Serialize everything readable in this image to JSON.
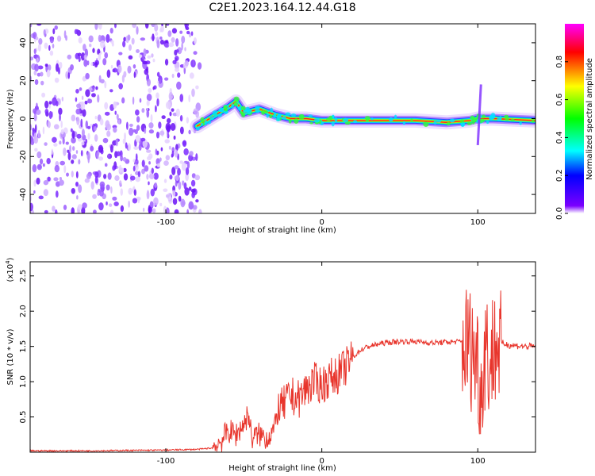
{
  "title": "C2E1.2023.164.12.44.G18",
  "chart_data": [
    {
      "type": "heatmap",
      "xlabel": "Height of straight line (km)",
      "ylabel": "Frequency (Hz)",
      "xlim": [
        -187,
        137
      ],
      "ylim": [
        -50,
        50
      ],
      "xticks": [
        -100,
        0,
        100
      ],
      "yticks": [
        40,
        20,
        0,
        -20,
        -40
      ],
      "colorbar": {
        "label": "Normalized spectral amplitude",
        "range": [
          0,
          1
        ],
        "ticks": [
          "0.0",
          "0.2",
          "0.4",
          "0.6",
          "0.8"
        ]
      },
      "noise_region_x": [
        -187,
        -78
      ],
      "signal_ridge": [
        {
          "x": -80,
          "y": -4
        },
        {
          "x": -70,
          "y": 1
        },
        {
          "x": -60,
          "y": 6
        },
        {
          "x": -55,
          "y": 9
        },
        {
          "x": -50,
          "y": 3
        },
        {
          "x": -40,
          "y": 5
        },
        {
          "x": -30,
          "y": 2
        },
        {
          "x": -20,
          "y": 0
        },
        {
          "x": -10,
          "y": 0
        },
        {
          "x": 0,
          "y": -1
        },
        {
          "x": 20,
          "y": -1
        },
        {
          "x": 60,
          "y": -1
        },
        {
          "x": 80,
          "y": -2
        },
        {
          "x": 95,
          "y": -1
        },
        {
          "x": 100,
          "y": 0
        },
        {
          "x": 110,
          "y": 0
        },
        {
          "x": 137,
          "y": -1
        }
      ]
    },
    {
      "type": "line",
      "xlabel": "Height of straight line (km)",
      "ylabel": "SNR (10 * v/v)",
      "yscale_label": "(x10",
      "yscale_exp": "4",
      "yscale_close": ")",
      "xlim": [
        -187,
        137
      ],
      "ylim": [
        0,
        2.7
      ],
      "xticks": [
        -100,
        0,
        100
      ],
      "yticks": [
        "0.5",
        "1.0",
        "1.5",
        "2.0",
        "2.5"
      ],
      "color": "#e8352c",
      "series": [
        {
          "x": [
            -187,
            -150,
            -100,
            -80,
            -70,
            -65,
            -60,
            -55,
            -50,
            -47,
            -45,
            -40,
            -35,
            -30,
            -28,
            -25,
            -20,
            -15,
            -10,
            -5,
            0,
            5,
            10,
            15,
            20,
            25,
            30,
            40,
            50,
            60,
            70,
            80,
            90,
            95,
            100,
            102,
            105,
            108,
            110,
            115,
            120,
            130,
            137
          ],
          "y": [
            0.02,
            0.02,
            0.03,
            0.04,
            0.06,
            0.15,
            0.3,
            0.25,
            0.4,
            0.55,
            0.2,
            0.25,
            0.2,
            0.35,
            0.6,
            0.65,
            0.8,
            0.75,
            0.9,
            1.0,
            0.95,
            1.05,
            1.1,
            1.2,
            1.35,
            1.45,
            1.5,
            1.55,
            1.57,
            1.57,
            1.55,
            1.56,
            1.57,
            1.5,
            1.3,
            0.8,
            1.6,
            1.2,
            1.5,
            1.55,
            1.52,
            1.5,
            1.5
          ]
        }
      ]
    }
  ]
}
